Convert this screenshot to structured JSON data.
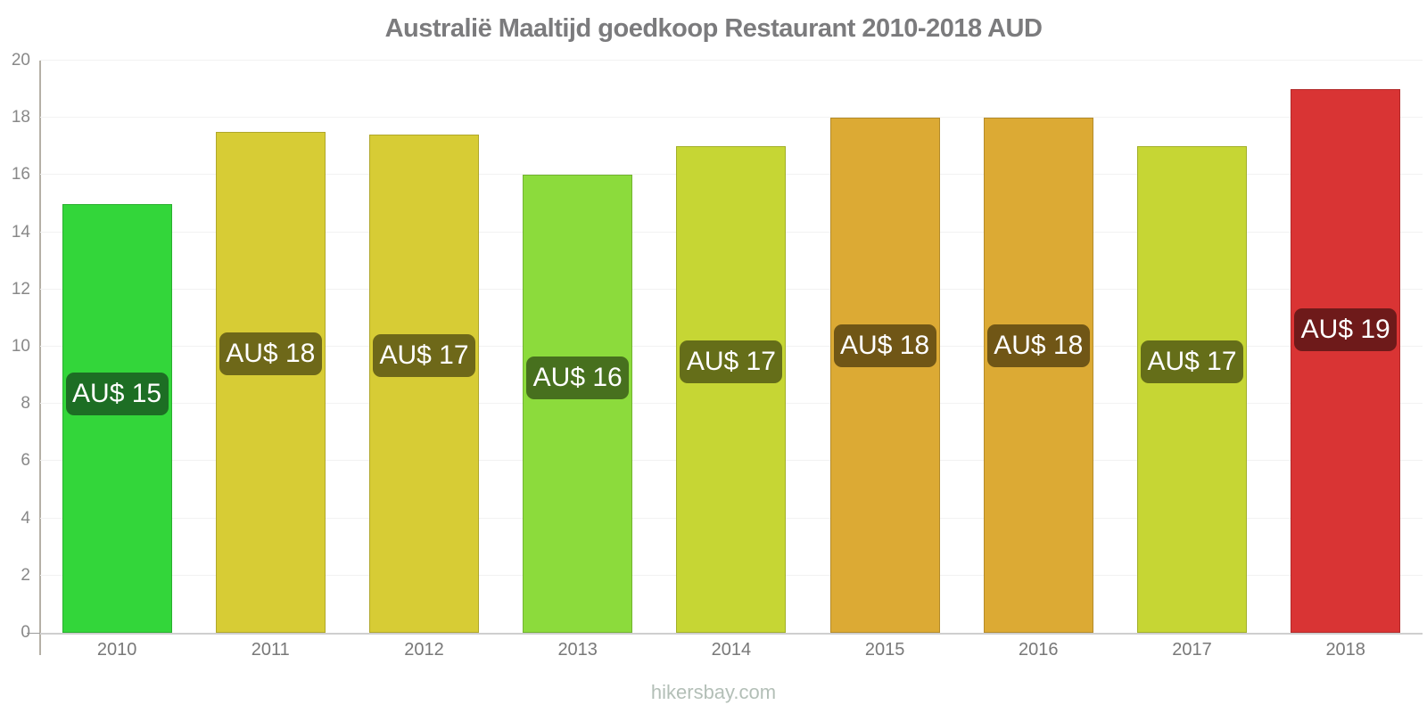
{
  "title": "Australië Maaltijd goedkoop Restaurant 2010-2018 AUD",
  "footer": "hikersbay.com",
  "colors": {
    "background": "#ffffff",
    "title_text": "#7b7b7d",
    "axis_line": "#b5b0a6",
    "baseline": "#cfcfcf",
    "gridline": "#f2f2f2",
    "y_tick_text": "#888888",
    "x_tick_text": "#787878",
    "footer_text": "#b3bfb7",
    "bar_label_text": "#ffffff"
  },
  "chart_data": {
    "type": "bar",
    "title": "Australië Maaltijd goedkoop Restaurant 2010-2018 AUD",
    "xlabel": "",
    "ylabel": "",
    "ylim": [
      0,
      20
    ],
    "yticks": [
      0,
      2,
      4,
      6,
      8,
      10,
      12,
      14,
      16,
      18,
      20
    ],
    "grid": "horizontal faint lines at every 2 units",
    "legend": "none",
    "categories": [
      "2010",
      "2011",
      "2012",
      "2013",
      "2014",
      "2015",
      "2016",
      "2017",
      "2018"
    ],
    "values": [
      15,
      17.5,
      17.4,
      16,
      17,
      18,
      18,
      17,
      19
    ],
    "bar_labels": [
      "AU$ 15",
      "AU$ 18",
      "AU$ 17",
      "AU$ 16",
      "AU$ 17",
      "AU$ 18",
      "AU$ 18",
      "AU$ 17",
      "AU$ 19"
    ],
    "bar_colors": [
      "#33d63a",
      "#d7cc35",
      "#d7cc35",
      "#8cdb3c",
      "#c6d634",
      "#dcaa34",
      "#dcaa34",
      "#c6d634",
      "#d93434"
    ],
    "bar_label_backgrounds": [
      "#1d6e24",
      "#6e6819",
      "#6e6819",
      "#47701e",
      "#656e19",
      "#705616",
      "#705616",
      "#656e19",
      "#6e1a1a"
    ]
  }
}
